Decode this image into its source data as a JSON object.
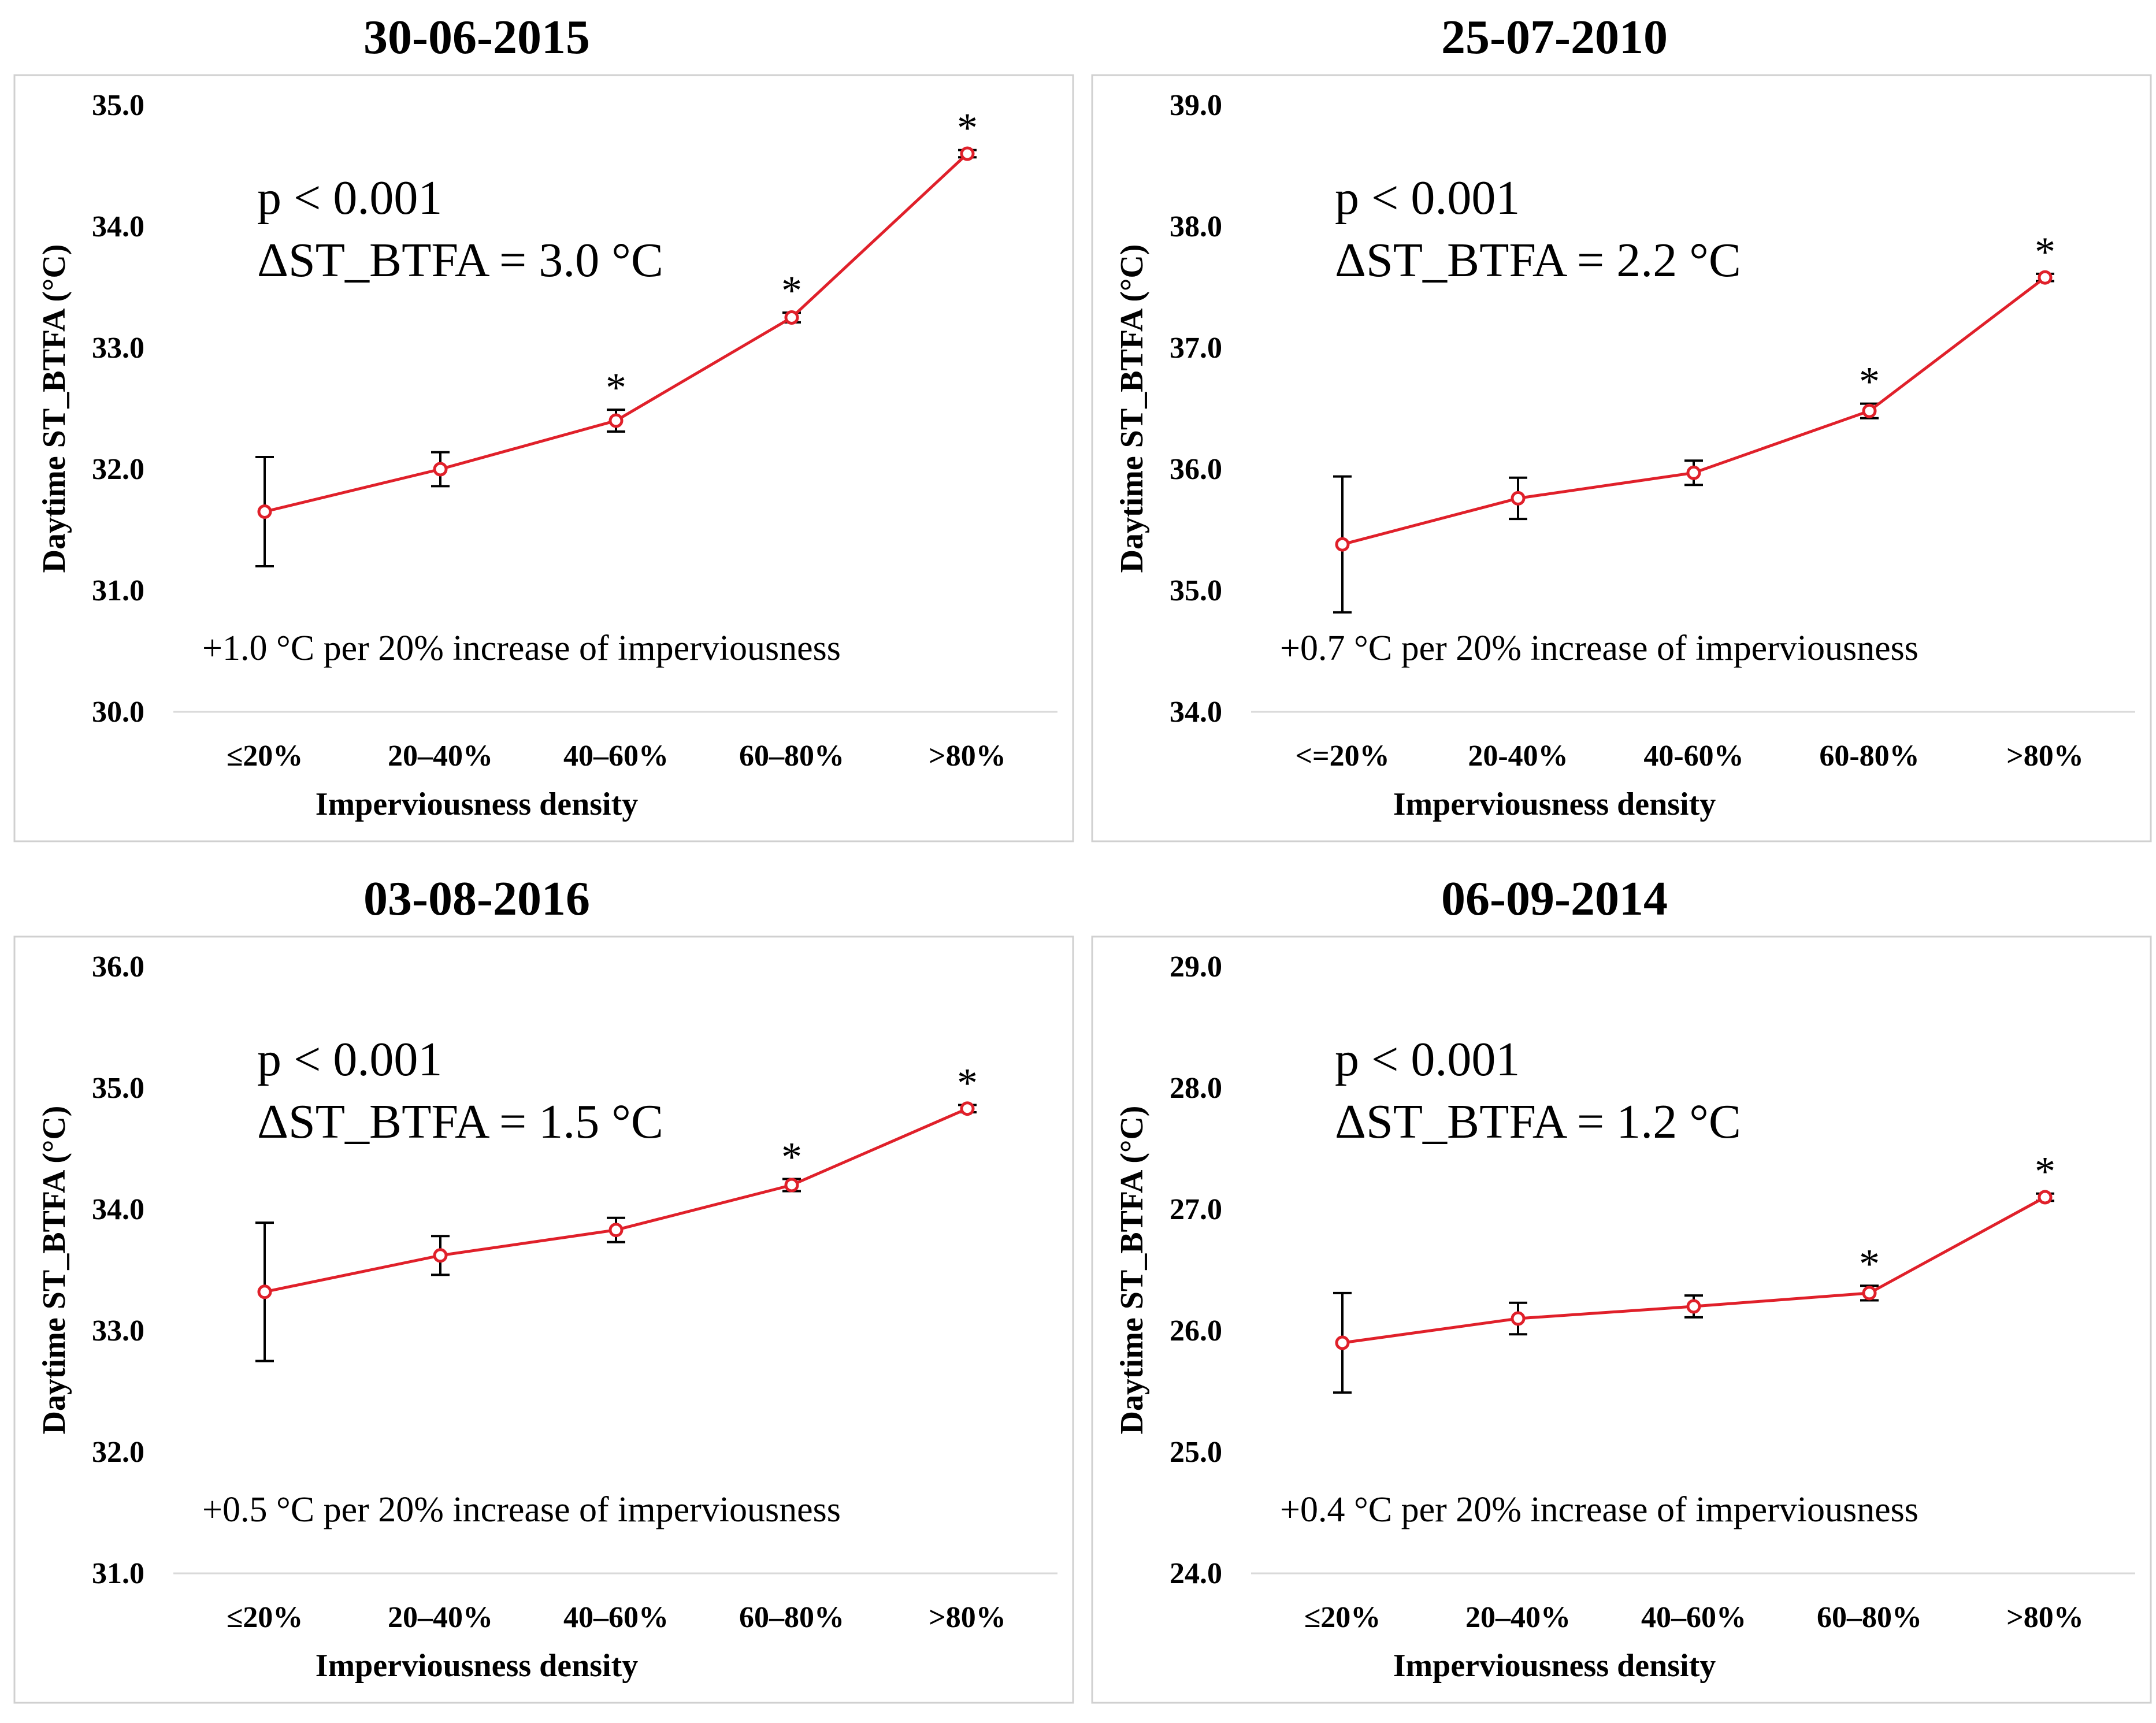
{
  "chart_data": [
    {
      "type": "line",
      "title": "30-06-2015",
      "xlabel": "Imperviousness density",
      "ylabel": "Daytime ST_BTFA (°C)",
      "categories": [
        "≤20%",
        "20–40%",
        "40–60%",
        "60–80%",
        ">80%"
      ],
      "values": [
        31.65,
        32.0,
        32.4,
        33.25,
        34.6
      ],
      "errors": [
        0.45,
        0.14,
        0.09,
        0.04,
        0.03
      ],
      "significant": [
        false,
        false,
        true,
        true,
        true
      ],
      "ylim": [
        30.0,
        35.0
      ],
      "yticks": [
        "30.0",
        "31.0",
        "32.0",
        "33.0",
        "34.0",
        "35.0"
      ],
      "annotation_p": "p < 0.001",
      "annotation_delta": "ΔST_BTFA = 3.0 °C",
      "annotation_rate": "+1.0 °C per 20% increase of imperviousness",
      "series_color": "#e0202a"
    },
    {
      "type": "line",
      "title": "25-07-2010",
      "xlabel": "Imperviousness density",
      "ylabel": "Daytime ST_BTFA (°C)",
      "categories": [
        "<=20%",
        "20-40%",
        "40-60%",
        "60-80%",
        ">80%"
      ],
      "values": [
        35.38,
        35.76,
        35.97,
        36.48,
        37.58
      ],
      "errors": [
        0.56,
        0.17,
        0.1,
        0.06,
        0.03
      ],
      "significant": [
        false,
        false,
        false,
        true,
        true
      ],
      "ylim": [
        34.0,
        39.0
      ],
      "yticks": [
        "34.0",
        "35.0",
        "36.0",
        "37.0",
        "38.0",
        "39.0"
      ],
      "annotation_p": "p < 0.001",
      "annotation_delta": "ΔST_BTFA = 2.2 °C",
      "annotation_rate": "+0.7 °C per 20% increase of imperviousness",
      "series_color": "#e0202a"
    },
    {
      "type": "line",
      "title": "03-08-2016",
      "xlabel": "Imperviousness density",
      "ylabel": "Daytime ST_BTFA (°C)",
      "categories": [
        "≤20%",
        "20–40%",
        "40–60%",
        "60–80%",
        ">80%"
      ],
      "values": [
        33.32,
        33.62,
        33.83,
        34.2,
        34.83
      ],
      "errors": [
        0.57,
        0.16,
        0.1,
        0.05,
        0.03
      ],
      "significant": [
        false,
        false,
        false,
        true,
        true
      ],
      "ylim": [
        31.0,
        36.0
      ],
      "yticks": [
        "31.0",
        "32.0",
        "33.0",
        "34.0",
        "35.0",
        "36.0"
      ],
      "annotation_p": "p < 0.001",
      "annotation_delta": "ΔST_BTFA = 1.5 °C",
      "annotation_rate": "+0.5 °C per 20% increase of imperviousness",
      "series_color": "#e0202a"
    },
    {
      "type": "line",
      "title": "06-09-2014",
      "xlabel": "Imperviousness density",
      "ylabel": "Daytime ST_BTFA (°C)",
      "categories": [
        "≤20%",
        "20–40%",
        "40–60%",
        "60–80%",
        ">80%"
      ],
      "values": [
        25.9,
        26.1,
        26.2,
        26.31,
        27.1
      ],
      "errors": [
        0.41,
        0.13,
        0.09,
        0.06,
        0.03
      ],
      "significant": [
        false,
        false,
        false,
        true,
        true
      ],
      "ylim": [
        24.0,
        29.0
      ],
      "yticks": [
        "24.0",
        "25.0",
        "26.0",
        "27.0",
        "28.0",
        "29.0"
      ],
      "annotation_p": "p < 0.001",
      "annotation_delta": "ΔST_BTFA = 1.2 °C",
      "annotation_rate": "+0.4 °C per 20% increase of imperviousness",
      "series_color": "#e0202a"
    }
  ]
}
